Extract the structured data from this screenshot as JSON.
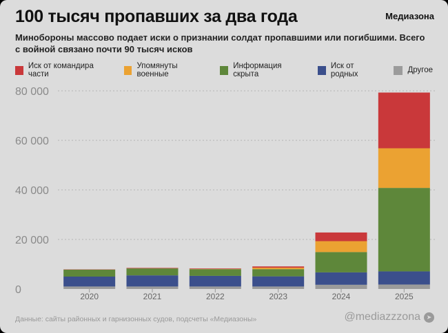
{
  "header": {
    "title": "100 тысяч пропавших за два года",
    "brand": "Медиазона",
    "subtitle": "Минобороны массово подает иски о признании солдат пропавшими или погибшими. Всего с войной связано почти 90 тысяч исков"
  },
  "footer": {
    "source": "Данные: сайты районных и гарнизонных судов, подсчеты «Медиазоны»",
    "handle": "@mediazzzona",
    "icon": "telegram-icon"
  },
  "chart_data": {
    "type": "bar",
    "stacked": true,
    "categories": [
      "2020",
      "2021",
      "2022",
      "2023",
      "2024",
      "2025"
    ],
    "ylim": [
      0,
      80000
    ],
    "yticks": [
      "0",
      "20 000",
      "40 000",
      "60 000",
      "80 000"
    ],
    "ytick_values": [
      0,
      20000,
      40000,
      60000,
      80000
    ],
    "grid": true,
    "legend_position": "top",
    "series": [
      {
        "name": "Другое",
        "color": "#9b9b9b",
        "values": [
          1000,
          1000,
          1000,
          1000,
          1700,
          1800
        ]
      },
      {
        "name": "Иск от родных",
        "color": "#3b4f8c",
        "values": [
          4000,
          4500,
          4300,
          4100,
          5000,
          5300
        ]
      },
      {
        "name": "Информация скрыта",
        "color": "#5e873a",
        "values": [
          2800,
          2800,
          2700,
          2900,
          8200,
          33700
        ]
      },
      {
        "name": "Упомянуты военные",
        "color": "#eba232",
        "values": [
          0,
          0,
          100,
          600,
          4400,
          16000
        ]
      },
      {
        "name": "Иск от командира части",
        "color": "#c9383a",
        "values": [
          100,
          200,
          200,
          500,
          3500,
          22500
        ]
      }
    ],
    "legend_order": [
      4,
      3,
      2,
      1,
      0
    ]
  }
}
